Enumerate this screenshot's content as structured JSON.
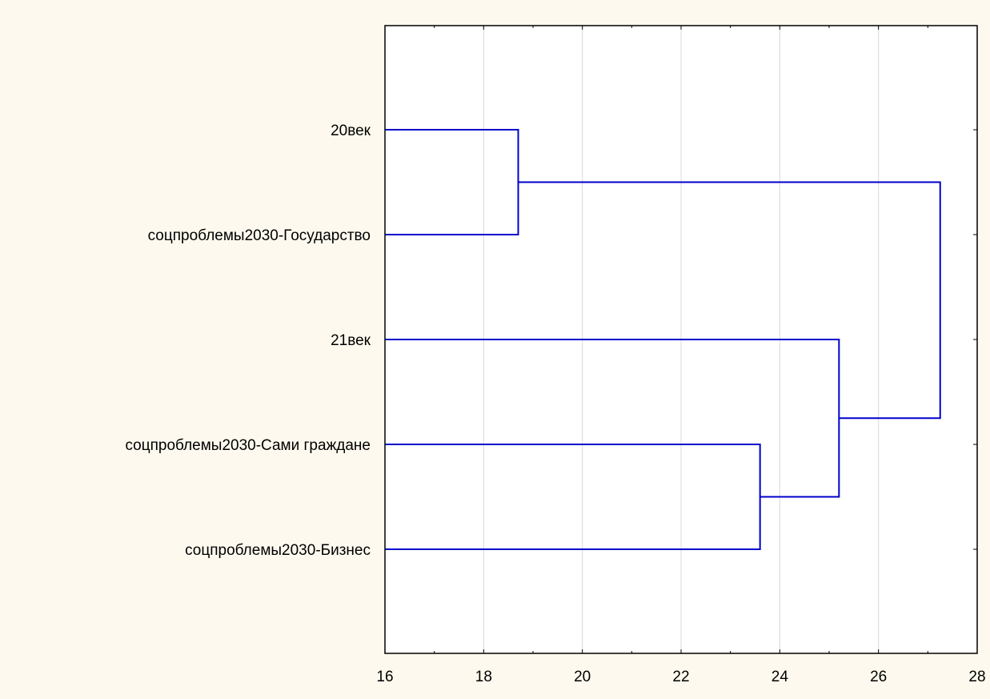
{
  "chart_data": {
    "type": "dendrogram",
    "title": "",
    "xlabel": "",
    "ylabel": "",
    "xlim": [
      16,
      28
    ],
    "x_ticks": [
      16,
      18,
      20,
      22,
      24,
      26,
      28
    ],
    "grid": "vertical",
    "leaves": [
      "20век",
      "соцпроблемы2030-Государство",
      "21век",
      "соцпроблемы2030-Сами граждане",
      "соцпроблемы2030-Бизнес"
    ],
    "merges": [
      {
        "left": "20век",
        "right": "соцпроблемы2030-Государство",
        "height": 18.7
      },
      {
        "left": "соцпроблемы2030-Сами граждане",
        "right": "соцпроблемы2030-Бизнес",
        "height": 23.6
      },
      {
        "left": "21век",
        "right": "cluster:2",
        "height": 25.2
      },
      {
        "left": "cluster:1",
        "right": "cluster:3",
        "height": 27.25
      }
    ],
    "colors": {
      "branch": "#0000cc",
      "grid": "#d8d8d8",
      "frame": "#000000",
      "background": "#fdf9ee",
      "plot_background": "#ffffff"
    }
  }
}
